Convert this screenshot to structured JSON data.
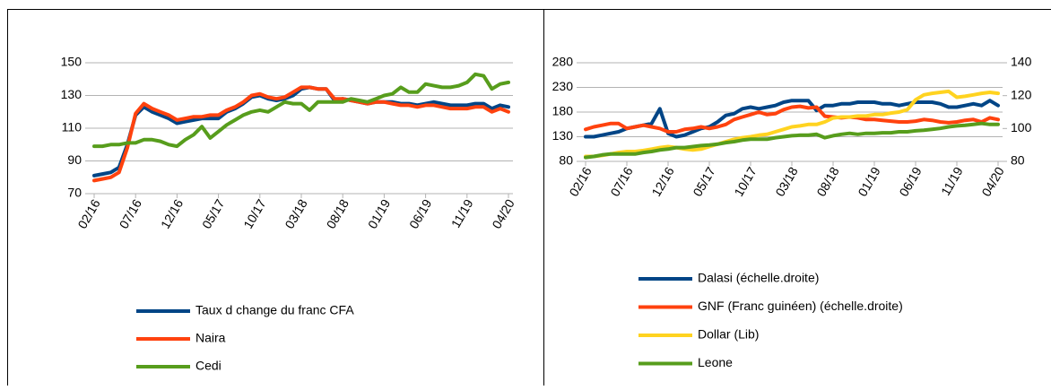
{
  "chart_data": [
    {
      "type": "line",
      "grid": true,
      "categories": [
        "02/16",
        null,
        null,
        null,
        null,
        "07/16",
        null,
        null,
        null,
        null,
        "12/16",
        null,
        null,
        null,
        null,
        "05/17",
        null,
        null,
        null,
        null,
        "10/17",
        null,
        null,
        null,
        null,
        "03/18",
        null,
        null,
        null,
        null,
        "08/18",
        null,
        null,
        null,
        null,
        "01/19",
        null,
        null,
        null,
        null,
        "06/19",
        null,
        null,
        null,
        null,
        "11/19",
        null,
        null,
        null,
        null,
        "04/20"
      ],
      "ylim": [
        70,
        150
      ],
      "yticks": [
        70,
        90,
        110,
        130,
        150
      ],
      "series": [
        {
          "name": "Taux d change du franc CFA",
          "color": "#004586",
          "values": [
            81,
            82,
            83,
            86,
            100,
            118,
            123,
            120,
            118,
            116,
            113,
            114,
            115,
            116,
            116,
            116,
            120,
            122,
            125,
            129,
            130,
            128,
            127,
            128,
            130,
            134,
            135,
            134,
            134,
            127,
            128,
            127,
            126,
            125,
            126,
            126,
            126,
            125,
            125,
            124,
            125,
            126,
            125,
            124,
            124,
            124,
            125,
            125,
            122,
            124,
            123
          ]
        },
        {
          "name": "Naira",
          "color": "#ff420e",
          "values": [
            78,
            79,
            80,
            83,
            98,
            119,
            125,
            122,
            120,
            118,
            115,
            116,
            117,
            117,
            118,
            118,
            121,
            123,
            126,
            130,
            131,
            129,
            128,
            129,
            132,
            135,
            135,
            134,
            134,
            128,
            128,
            127,
            126,
            125,
            126,
            126,
            125,
            124,
            124,
            123,
            124,
            124,
            123,
            122,
            122,
            122,
            123,
            123,
            120,
            122,
            120
          ]
        },
        {
          "name": "Cedi",
          "color": "#579d1c",
          "values": [
            99,
            99,
            100,
            100,
            101,
            101,
            103,
            103,
            102,
            100,
            99,
            103,
            106,
            111,
            104,
            108,
            112,
            115,
            118,
            120,
            121,
            120,
            123,
            126,
            125,
            125,
            121,
            126,
            126,
            126,
            126,
            128,
            127,
            126,
            128,
            130,
            131,
            135,
            132,
            132,
            137,
            136,
            135,
            135,
            136,
            138,
            143,
            142,
            134,
            137,
            138
          ]
        }
      ]
    },
    {
      "type": "line",
      "grid": true,
      "categories": [
        "02/16",
        null,
        null,
        null,
        null,
        "07/16",
        null,
        null,
        null,
        null,
        "12/16",
        null,
        null,
        null,
        null,
        "05/17",
        null,
        null,
        null,
        null,
        "10/17",
        null,
        null,
        null,
        null,
        "03/18",
        null,
        null,
        null,
        null,
        "08/18",
        null,
        null,
        null,
        null,
        "01/19",
        null,
        null,
        null,
        null,
        "06/19",
        null,
        null,
        null,
        null,
        "11/19",
        null,
        null,
        null,
        null,
        "04/20"
      ],
      "ylim": [
        80,
        280
      ],
      "yticks": [
        80,
        130,
        180,
        230,
        280
      ],
      "y2lim": [
        80,
        140
      ],
      "y2ticks": [
        80,
        100,
        120,
        140
      ],
      "series": [
        {
          "name": "Dalasi (échelle.droite)",
          "color": "#004586",
          "axis": "y2",
          "values": [
            95,
            95,
            96,
            97,
            98,
            100,
            101,
            102,
            103,
            112,
            97,
            95,
            96,
            98,
            100,
            101,
            104,
            108,
            109,
            112,
            113,
            112,
            113,
            114,
            116,
            117,
            117,
            117,
            111,
            114,
            114,
            115,
            115,
            116,
            116,
            116,
            115,
            115,
            114,
            115,
            116,
            116,
            116,
            115,
            113,
            113,
            114,
            115,
            114,
            117,
            114
          ]
        },
        {
          "name": "GNF (Franc guinéen) (échelle.droite)",
          "color": "#ff420e",
          "axis": "y2",
          "values": [
            99.5,
            101,
            102,
            103,
            103,
            100,
            101,
            102,
            101,
            100,
            98,
            98,
            99.5,
            100,
            101,
            100,
            101,
            102.5,
            105.5,
            107,
            108.5,
            110,
            108.5,
            109,
            111.5,
            113,
            113.5,
            112.5,
            113,
            107.5,
            107,
            106.5,
            107,
            106.5,
            105.5,
            105.5,
            105,
            104.5,
            104,
            104,
            104.5,
            105.5,
            105,
            104,
            103.5,
            104,
            105,
            105.5,
            104,
            106.5,
            105.5
          ]
        },
        {
          "name": "Dollar (Lib)",
          "color": "#ffd320",
          "values": [
            90,
            90,
            92,
            95,
            98,
            100,
            100,
            102,
            105,
            108,
            110,
            108,
            105,
            103,
            105,
            110,
            115,
            120,
            125,
            128,
            130,
            133,
            135,
            140,
            145,
            150,
            152,
            155,
            155,
            160,
            168,
            170,
            170,
            172,
            172,
            175,
            175,
            178,
            180,
            185,
            205,
            215,
            218,
            220,
            222,
            210,
            212,
            215,
            218,
            220,
            218
          ]
        },
        {
          "name": "Leone",
          "color": "#579d1c",
          "values": [
            88,
            90,
            93,
            95,
            95,
            95,
            95,
            98,
            100,
            103,
            105,
            108,
            108,
            110,
            112,
            113,
            115,
            118,
            120,
            123,
            125,
            125,
            125,
            128,
            130,
            132,
            133,
            133,
            135,
            128,
            132,
            135,
            137,
            135,
            137,
            137,
            138,
            138,
            140,
            140,
            142,
            143,
            145,
            147,
            150,
            152,
            153,
            155,
            157,
            155,
            155
          ]
        }
      ]
    }
  ]
}
